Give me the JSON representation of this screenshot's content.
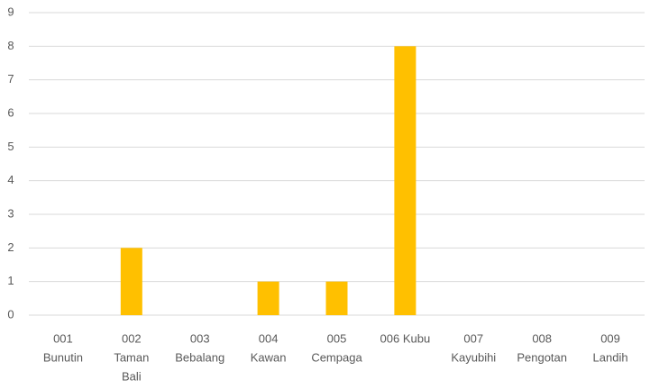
{
  "chart_data": {
    "type": "bar",
    "categories": [
      [
        "001",
        "Bunutin"
      ],
      [
        "002",
        "Taman",
        "Bali"
      ],
      [
        "003",
        "Bebalang"
      ],
      [
        "004",
        "Kawan"
      ],
      [
        "005",
        "Cempaga"
      ],
      [
        "006 Kubu"
      ],
      [
        "007",
        "Kayubihi"
      ],
      [
        "008",
        "Pengotan"
      ],
      [
        "009",
        "Landih"
      ]
    ],
    "values": [
      0,
      2,
      0,
      1,
      1,
      8,
      0,
      0,
      0
    ],
    "color": "#ffc000",
    "ylim": [
      0,
      9
    ],
    "yticks": [
      0,
      1,
      2,
      3,
      4,
      5,
      6,
      7,
      8,
      9
    ],
    "grid": true
  }
}
